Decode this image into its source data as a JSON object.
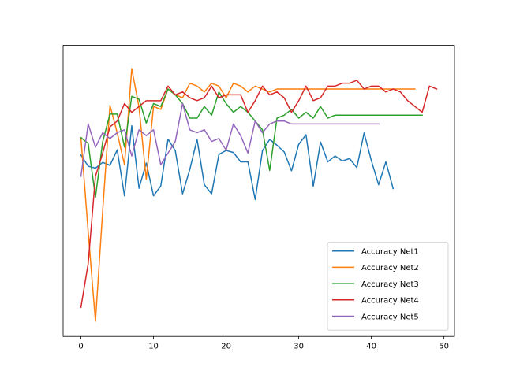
{
  "chart_data": {
    "type": "line",
    "title": "",
    "xlabel": "",
    "ylabel": "",
    "xlim": [
      -2.45,
      51.45
    ],
    "ylim": [
      0.0,
      1.0
    ],
    "y_ticks_shown": false,
    "xticks": [
      0,
      10,
      20,
      30,
      40,
      50
    ],
    "xtick_labels": [
      "0",
      "10",
      "20",
      "30",
      "40",
      "50"
    ],
    "grid": false,
    "legend_position": "lower-right",
    "series": [
      {
        "name": "Accuracy Net1",
        "color": "#1f77b4",
        "values": [
          0.623,
          0.585,
          0.578,
          0.598,
          0.588,
          0.641,
          0.483,
          0.724,
          0.509,
          0.596,
          0.483,
          0.517,
          0.678,
          0.638,
          0.49,
          0.574,
          0.677,
          0.521,
          0.49,
          0.625,
          0.639,
          0.632,
          0.6,
          0.6,
          0.47,
          0.638,
          0.677,
          0.657,
          0.634,
          0.569,
          0.66,
          0.693,
          0.516,
          0.668,
          0.6,
          0.62,
          0.603,
          0.611,
          0.58,
          0.699,
          0.604,
          0.521,
          0.6,
          0.508
        ]
      },
      {
        "name": "Accuracy Net2",
        "color": "#ff7f0e",
        "values": [
          0.683,
          0.36,
          0.052,
          0.432,
          0.794,
          0.699,
          0.59,
          0.92,
          0.788,
          0.54,
          0.79,
          0.78,
          0.85,
          0.83,
          0.82,
          0.87,
          0.86,
          0.84,
          0.87,
          0.86,
          0.82,
          0.87,
          0.86,
          0.84,
          0.86,
          0.85,
          0.84,
          0.85,
          0.85,
          0.85,
          0.85,
          0.85,
          0.85,
          0.85,
          0.85,
          0.85,
          0.85,
          0.85,
          0.85,
          0.85,
          0.85,
          0.85,
          0.85,
          0.85,
          0.85,
          0.85,
          0.85
        ]
      },
      {
        "name": "Accuracy Net3",
        "color": "#2ca02c",
        "values": [
          0.683,
          0.663,
          0.478,
          0.669,
          0.764,
          0.764,
          0.651,
          0.825,
          0.815,
          0.733,
          0.8,
          0.79,
          0.85,
          0.83,
          0.8,
          0.75,
          0.75,
          0.79,
          0.76,
          0.84,
          0.8,
          0.77,
          0.79,
          0.77,
          0.74,
          0.71,
          0.57,
          0.75,
          0.76,
          0.78,
          0.75,
          0.77,
          0.75,
          0.79,
          0.75,
          0.76,
          0.76,
          0.76,
          0.76,
          0.76,
          0.76,
          0.76,
          0.76,
          0.76,
          0.76,
          0.76,
          0.76,
          0.76
        ]
      },
      {
        "name": "Accuracy Net4",
        "color": "#d62728",
        "values": [
          0.1,
          0.25,
          0.55,
          0.63,
          0.72,
          0.74,
          0.8,
          0.77,
          0.79,
          0.81,
          0.81,
          0.81,
          0.86,
          0.83,
          0.84,
          0.82,
          0.81,
          0.82,
          0.86,
          0.82,
          0.83,
          0.83,
          0.83,
          0.77,
          0.81,
          0.86,
          0.83,
          0.84,
          0.82,
          0.77,
          0.81,
          0.86,
          0.81,
          0.82,
          0.86,
          0.86,
          0.87,
          0.87,
          0.88,
          0.85,
          0.86,
          0.86,
          0.84,
          0.85,
          0.84,
          0.81,
          0.79,
          0.77,
          0.86,
          0.85
        ]
      },
      {
        "name": "Accuracy Net5",
        "color": "#9467bd",
        "values": [
          0.55,
          0.73,
          0.65,
          0.7,
          0.68,
          0.7,
          0.71,
          0.62,
          0.71,
          0.69,
          0.71,
          0.59,
          0.63,
          0.67,
          0.8,
          0.71,
          0.7,
          0.71,
          0.67,
          0.68,
          0.64,
          0.73,
          0.69,
          0.63,
          0.74,
          0.7,
          0.73,
          0.74,
          0.74,
          0.73,
          0.73,
          0.73,
          0.73,
          0.73,
          0.73,
          0.73,
          0.73,
          0.73,
          0.73,
          0.73,
          0.73,
          0.73
        ]
      }
    ]
  }
}
